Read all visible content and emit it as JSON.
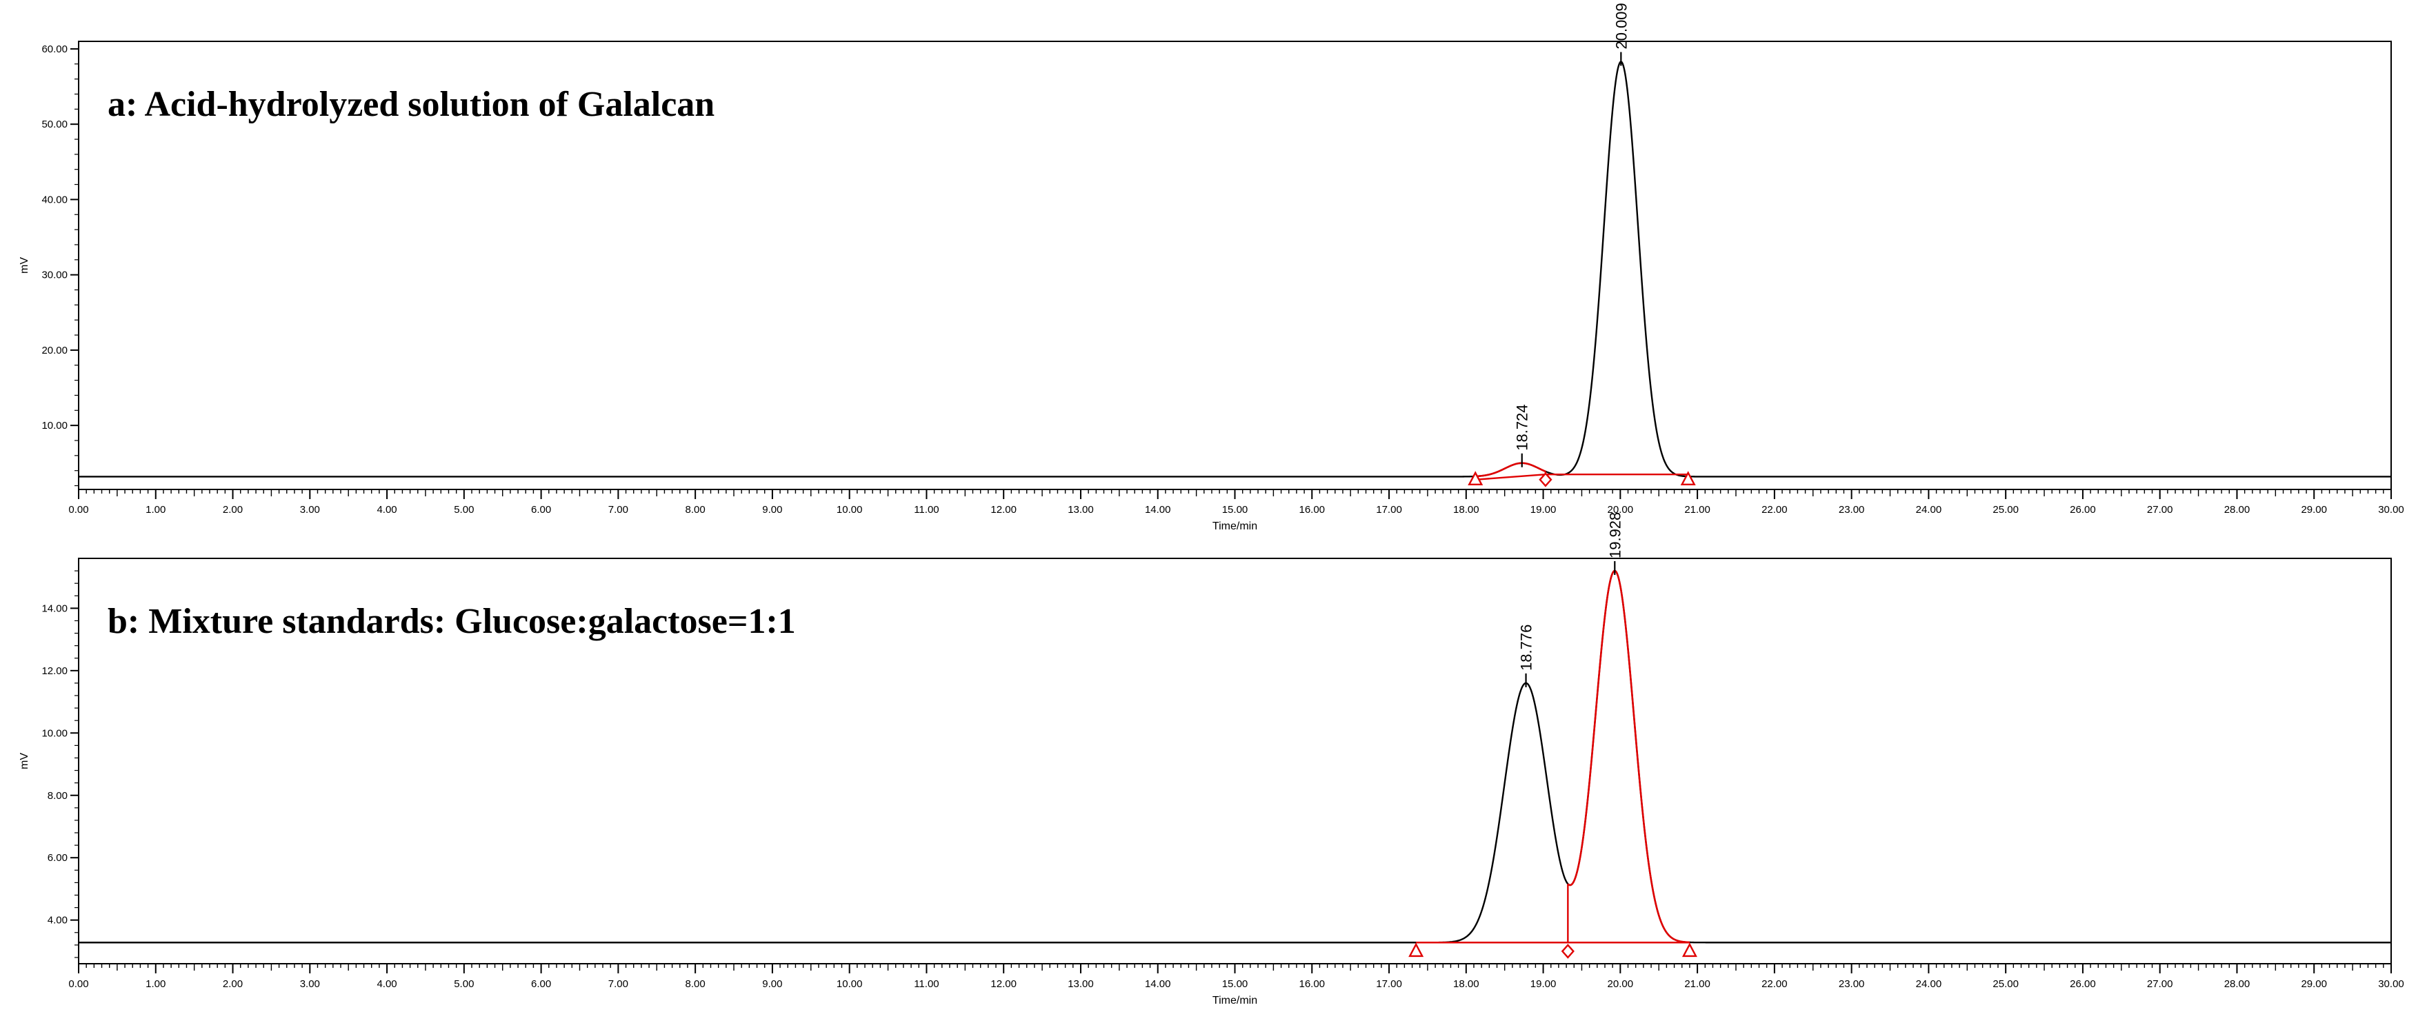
{
  "chart_data": [
    {
      "type": "line",
      "title": "a: Acid-hydrolyzed solution of Galalcan",
      "xlabel": "Time/min",
      "ylabel": "mV",
      "xlim": [
        0,
        30
      ],
      "ylim": [
        1.5,
        61
      ],
      "x_ticks": [
        "0.00",
        "1.00",
        "2.00",
        "3.00",
        "4.00",
        "5.00",
        "6.00",
        "7.00",
        "8.00",
        "9.00",
        "10.00",
        "11.00",
        "12.00",
        "13.00",
        "14.00",
        "15.00",
        "16.00",
        "17.00",
        "18.00",
        "19.00",
        "20.00",
        "21.00",
        "22.00",
        "23.00",
        "24.00",
        "25.00",
        "26.00",
        "27.00",
        "28.00",
        "29.00",
        "30.00"
      ],
      "y_ticks": [
        "10.00",
        "20.00",
        "30.00",
        "40.00",
        "50.00",
        "60.00"
      ],
      "baseline": 3.2,
      "peaks": [
        {
          "label": "18.724",
          "rt": 18.724,
          "height": 5.0,
          "sigma": 0.22,
          "color": "#e00000",
          "integration": {
            "start": 18.12,
            "end": 19.03,
            "start_y": 2.8,
            "end_y": 3.5
          }
        },
        {
          "label": "20.009",
          "rt": 20.009,
          "height": 58.3,
          "sigma": 0.22,
          "color": "#000000",
          "integration": {
            "start": 19.03,
            "end": 20.88,
            "start_y": 3.5,
            "end_y": 3.5
          }
        }
      ],
      "markers": [
        {
          "type": "triangle",
          "x": 18.12,
          "y": 2.8
        },
        {
          "type": "diamond",
          "x": 19.03,
          "y": 2.8
        },
        {
          "type": "triangle",
          "x": 20.88,
          "y": 2.8
        }
      ],
      "grid": false,
      "legend": "none"
    },
    {
      "type": "line",
      "title": "b: Mixture standards: Glucose:galactose=1:1",
      "xlabel": "Time/min",
      "ylabel": "mV",
      "xlim": [
        0,
        30
      ],
      "ylim": [
        2.6,
        15.6
      ],
      "x_ticks": [
        "0.00",
        "1.00",
        "2.00",
        "3.00",
        "4.00",
        "5.00",
        "6.00",
        "7.00",
        "8.00",
        "9.00",
        "10.00",
        "11.00",
        "12.00",
        "13.00",
        "14.00",
        "15.00",
        "16.00",
        "17.00",
        "18.00",
        "19.00",
        "20.00",
        "21.00",
        "22.00",
        "23.00",
        "24.00",
        "25.00",
        "26.00",
        "27.00",
        "28.00",
        "29.00",
        "30.00"
      ],
      "y_ticks": [
        "4.00",
        "6.00",
        "8.00",
        "10.00",
        "12.00",
        "14.00"
      ],
      "baseline": 3.28,
      "peaks": [
        {
          "label": "18.776",
          "rt": 18.776,
          "height": 11.6,
          "sigma": 0.28,
          "color": "#000000",
          "integration": {
            "start": 17.35,
            "end": 19.32,
            "start_y": 3.28,
            "end_y": 3.28
          }
        },
        {
          "label": "19.928",
          "rt": 19.928,
          "height": 15.2,
          "sigma": 0.25,
          "color": "#e00000",
          "integration": {
            "start": 19.32,
            "end": 20.9,
            "start_y": 3.28,
            "end_y": 3.28
          }
        }
      ],
      "markers": [
        {
          "type": "triangle",
          "x": 17.35,
          "y": 3.0
        },
        {
          "type": "diamond",
          "x": 19.32,
          "y": 3.0
        },
        {
          "type": "triangle",
          "x": 20.9,
          "y": 3.0
        }
      ],
      "grid": false,
      "legend": "none"
    }
  ]
}
